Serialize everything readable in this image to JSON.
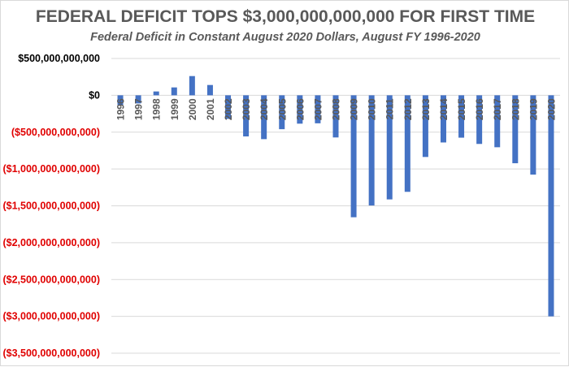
{
  "chart_data": {
    "type": "bar",
    "title": "FEDERAL DEFICIT TOPS $3,000,000,000,000 FOR FIRST TIME",
    "subtitle": "Federal Deficit in Constant August 2020 Dollars, August FY 1996-2020",
    "xlabel": "",
    "ylabel": "",
    "categories": [
      "1996",
      "1997",
      "1998",
      "1999",
      "2000",
      "2001",
      "2002",
      "2003",
      "2004",
      "2005",
      "2006",
      "2007",
      "2008",
      "2009",
      "2010",
      "2011",
      "2012",
      "2013",
      "2014",
      "2015",
      "2016",
      "2017",
      "2018",
      "2019",
      "2020"
    ],
    "values": [
      -130000000000,
      -110000000000,
      52000000000,
      107000000000,
      261000000000,
      140000000000,
      -320000000000,
      -558000000000,
      -595000000000,
      -460000000000,
      -385000000000,
      -380000000000,
      -572000000000,
      -1655000000000,
      -1495000000000,
      -1413000000000,
      -1310000000000,
      -837000000000,
      -640000000000,
      -575000000000,
      -660000000000,
      -705000000000,
      -922000000000,
      -1076000000000,
      -3000000000000
    ],
    "ylim": [
      -3500000000000,
      500000000000
    ],
    "yticks": [
      {
        "value": 500000000000,
        "label": "$500,000,000,000"
      },
      {
        "value": 0,
        "label": "$0"
      },
      {
        "value": -500000000000,
        "label": "($500,000,000,000)"
      },
      {
        "value": -1000000000000,
        "label": "($1,000,000,000,000)"
      },
      {
        "value": -1500000000000,
        "label": "($1,500,000,000,000)"
      },
      {
        "value": -2000000000000,
        "label": "($2,000,000,000,000)"
      },
      {
        "value": -2500000000000,
        "label": "($2,500,000,000,000)"
      },
      {
        "value": -3000000000000,
        "label": "($3,000,000,000,000)"
      },
      {
        "value": -3500000000000,
        "label": "($3,500,000,000,000)"
      }
    ],
    "grid": true,
    "legend": "none",
    "colors": {
      "bar": "#4472c4",
      "positive_label": "#000000",
      "negative_label": "#e00000",
      "grid": "#d9d9d9",
      "category_label": "#595959"
    }
  }
}
